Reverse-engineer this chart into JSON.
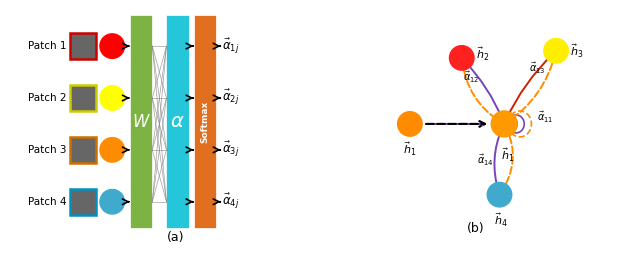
{
  "fig_width": 6.4,
  "fig_height": 2.68,
  "dpi": 100,
  "background": "#ffffff",
  "patch_labels": [
    "Patch 1",
    "Patch 2",
    "Patch 3",
    "Patch 4"
  ],
  "patch_border_colors": [
    "#cc0000",
    "#cccc00",
    "#cc7000",
    "#0090c0"
  ],
  "circle_colors": [
    "#FF0000",
    "#FFFF00",
    "#FF8C00",
    "#40AACC"
  ],
  "W_color": "#7CB342",
  "alpha_color": "#26C6DA",
  "softmax_color": "#E07020",
  "output_labels": [
    "$\\vec{\\alpha}_{1j}$",
    "$\\vec{\\alpha}_{2j}$",
    "$\\vec{\\alpha}_{3j}$",
    "$\\vec{\\alpha}_{4j}$"
  ],
  "label_a": "(a)",
  "label_b": "(b)"
}
